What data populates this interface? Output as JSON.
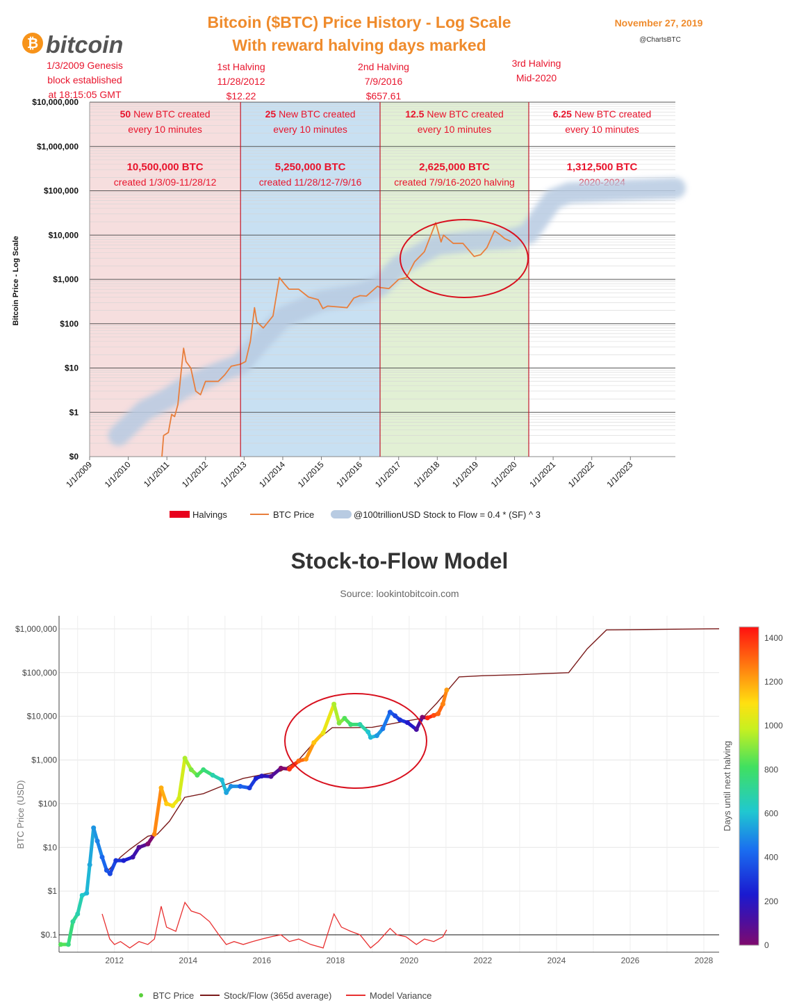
{
  "top": {
    "logo_text": "bitcoin",
    "logo_symbol": "₿",
    "title_line1": "Bitcoin ($BTC) Price History - Log Scale",
    "title_line2": "With reward halving days marked",
    "date": "November 27, 2019",
    "handle": "@ChartsBTC",
    "events": [
      {
        "lines": [
          "1/3/2009 Genesis",
          "block established",
          "at 18:15:05 GMT"
        ]
      },
      {
        "lines": [
          "1st Halving",
          "11/28/2012",
          "$12.22"
        ]
      },
      {
        "lines": [
          "2nd Halving",
          "7/9/2016",
          "$657.61"
        ]
      },
      {
        "lines": [
          "3rd Halving",
          "Mid-2020"
        ]
      }
    ],
    "eras": [
      {
        "reward": "50",
        "reward_text": " New BTC created",
        "every": "every 10 minutes",
        "total": "10,500,000 BTC",
        "period": "created  1/3/09-11/28/12",
        "color": "#f6dede"
      },
      {
        "reward": "25",
        "reward_text": " New BTC created",
        "every": "every 10 minutes",
        "total": "5,250,000 BTC",
        "period": "created 11/28/12-7/9/16",
        "color": "#c8e0f2"
      },
      {
        "reward": "12.5",
        "reward_text": " New BTC created",
        "every": "every 10 minutes",
        "total": "2,625,000 BTC",
        "period": "created 7/9/16-2020 halving",
        "color": "#e2f0d4"
      },
      {
        "reward": "6.25",
        "reward_text": " New BTC created",
        "every": "every 10 minutes",
        "total": "1,312,500 BTC",
        "period": "2020-2024",
        "color": "#ffffff"
      }
    ],
    "legend": [
      {
        "label": "Halvings",
        "color": "#e8001c"
      },
      {
        "label": "BTC Price",
        "color": "#e87e3c"
      },
      {
        "label": "@100trillionUSD Stock to Flow = 0.4 * (SF) ^ 3",
        "color": "#b8cbe2"
      }
    ]
  },
  "bottom": {
    "title": "Stock-to-Flow Model",
    "source": "Source: lookintobitcoin.com",
    "colorbar_label": "Days until next halving",
    "legend": [
      {
        "label": "BTC Price",
        "color": "#5ad03c"
      },
      {
        "label": "Stock/Flow (365d average)",
        "color": "#7a1a1a"
      },
      {
        "label": "Model Variance",
        "color": "#e83030"
      }
    ]
  },
  "chart_data": [
    {
      "type": "line",
      "title": "Bitcoin ($BTC) Price History - Log Scale",
      "subtitle": "With reward halving days marked",
      "ylabel": "Bitcoin Price - Log Scale",
      "y_scale": "log",
      "ylim": [
        0.1,
        10000000
      ],
      "xlim": [
        "2009-01-01",
        "2024-03-01"
      ],
      "y_ticks": [
        {
          "v": 0.1,
          "label": "$0"
        },
        {
          "v": 1,
          "label": "$1"
        },
        {
          "v": 10,
          "label": "$10"
        },
        {
          "v": 100,
          "label": "$100"
        },
        {
          "v": 1000,
          "label": "$1,000"
        },
        {
          "v": 10000,
          "label": "$10,000"
        },
        {
          "v": 100000,
          "label": "$100,000"
        },
        {
          "v": 1000000,
          "label": "$1,000,000"
        },
        {
          "v": 10000000,
          "label": "$10,000,000"
        }
      ],
      "x_ticks": [
        "1/1/2009",
        "1/1/2010",
        "1/1/2011",
        "1/1/2012",
        "1/1/2013",
        "1/1/2014",
        "1/1/2015",
        "1/1/2016",
        "1/1/2017",
        "1/1/2018",
        "1/1/2019",
        "1/1/2020",
        "1/1/2021",
        "1/1/2022",
        "1/1/2023"
      ],
      "halvings": [
        "2012-11-28",
        "2016-07-09",
        "2020-05-15"
      ],
      "grid": true,
      "legend_position": "bottom",
      "series": [
        {
          "name": "BTC Price",
          "x": [
            "2010-11-15",
            "2010-12-01",
            "2011-01-15",
            "2011-02-15",
            "2011-03-15",
            "2011-04-15",
            "2011-05-15",
            "2011-06-08",
            "2011-07-01",
            "2011-08-15",
            "2011-10-01",
            "2011-11-15",
            "2012-01-01",
            "2012-03-01",
            "2012-05-01",
            "2012-07-01",
            "2012-09-01",
            "2012-11-28",
            "2013-01-15",
            "2013-03-01",
            "2013-04-09",
            "2013-05-01",
            "2013-07-01",
            "2013-10-01",
            "2013-11-30",
            "2014-01-15",
            "2014-03-01",
            "2014-06-01",
            "2014-09-01",
            "2014-12-01",
            "2015-01-15",
            "2015-03-01",
            "2015-06-01",
            "2015-09-01",
            "2015-11-04",
            "2016-01-01",
            "2016-03-01",
            "2016-06-15",
            "2016-07-09",
            "2016-10-01",
            "2017-01-01",
            "2017-03-15",
            "2017-06-01",
            "2017-09-01",
            "2017-12-17",
            "2018-02-06",
            "2018-03-01",
            "2018-06-01",
            "2018-09-01",
            "2018-12-15",
            "2019-02-15",
            "2019-04-15",
            "2019-06-26",
            "2019-08-15",
            "2019-10-01",
            "2019-11-27"
          ],
          "values": [
            0.1,
            0.3,
            0.35,
            0.9,
            0.8,
            1.5,
            8,
            28,
            14,
            10,
            3,
            2.5,
            5,
            5,
            5,
            7,
            11,
            12.22,
            14,
            40,
            230,
            110,
            80,
            150,
            1100,
            800,
            600,
            600,
            400,
            350,
            220,
            250,
            240,
            230,
            380,
            430,
            420,
            700,
            657.61,
            620,
            1000,
            1100,
            2500,
            4200,
            19000,
            7000,
            10000,
            6500,
            6500,
            3300,
            3600,
            5200,
            12500,
            10300,
            8300,
            7200
          ]
        },
        {
          "name": "@100trillionUSD Stock to Flow = 0.4 * (SF) ^ 3",
          "x": [
            "2009-10-01",
            "2010-06-01",
            "2011-01-01",
            "2011-06-01",
            "2012-01-01",
            "2012-06-01",
            "2012-11-28",
            "2013-06-01",
            "2014-01-01",
            "2015-01-01",
            "2016-01-01",
            "2016-07-09",
            "2017-01-01",
            "2017-07-01",
            "2018-01-01",
            "2019-01-01",
            "2020-01-01",
            "2020-05-15",
            "2020-08-01",
            "2021-01-01",
            "2021-06-01",
            "2022-01-01",
            "2023-01-01",
            "2024-03-01"
          ],
          "values": [
            0.3,
            1.1,
            2,
            3.5,
            6,
            8.5,
            12,
            40,
            140,
            330,
            480,
            700,
            2000,
            3500,
            6000,
            7500,
            8500,
            11000,
            20000,
            65000,
            90000,
            95000,
            105000,
            115000
          ]
        }
      ]
    },
    {
      "type": "scatter",
      "title": "Stock-to-Flow Model",
      "subtitle": "Source: lookintobitcoin.com",
      "ylabel": "BTC Price (USD)",
      "y_scale": "log",
      "ylim": [
        0.04,
        2000000
      ],
      "xlim": [
        "2010-07-01",
        "2028-06-01"
      ],
      "y_ticks": [
        {
          "v": 0.1,
          "label": "$0.1"
        },
        {
          "v": 1,
          "label": "$1"
        },
        {
          "v": 10,
          "label": "$10"
        },
        {
          "v": 100,
          "label": "$100"
        },
        {
          "v": 1000,
          "label": "$1,000"
        },
        {
          "v": 10000,
          "label": "$10,000"
        },
        {
          "v": 100000,
          "label": "$100,000"
        },
        {
          "v": 1000000,
          "label": "$1,000,000"
        }
      ],
      "x_ticks": [
        "2012",
        "2014",
        "2016",
        "2018",
        "2020",
        "2022",
        "2024",
        "2026",
        "2028"
      ],
      "colorbar": {
        "label": "Days until next halving",
        "ticks": [
          0,
          200,
          400,
          600,
          800,
          1000,
          1200,
          1400
        ],
        "range": [
          0,
          1450
        ]
      },
      "grid": true,
      "legend_position": "bottom",
      "series": [
        {
          "name": "BTC Price",
          "x": [
            "2010-07-18",
            "2010-10-01",
            "2010-11-15",
            "2011-01-01",
            "2011-02-15",
            "2011-04-01",
            "2011-05-01",
            "2011-06-08",
            "2011-07-15",
            "2011-09-01",
            "2011-10-15",
            "2011-11-18",
            "2012-01-15",
            "2012-04-01",
            "2012-07-01",
            "2012-09-01",
            "2012-11-28",
            "2013-02-01",
            "2013-04-09",
            "2013-06-01",
            "2013-08-01",
            "2013-10-01",
            "2013-11-30",
            "2014-02-01",
            "2014-04-01",
            "2014-06-01",
            "2014-09-01",
            "2014-12-01",
            "2015-01-14",
            "2015-03-01",
            "2015-06-01",
            "2015-09-01",
            "2015-11-04",
            "2016-01-01",
            "2016-04-01",
            "2016-07-09",
            "2016-10-01",
            "2017-01-01",
            "2017-03-15",
            "2017-06-01",
            "2017-09-01",
            "2017-12-17",
            "2018-02-06",
            "2018-04-01",
            "2018-06-01",
            "2018-09-01",
            "2018-11-20",
            "2018-12-15",
            "2019-02-15",
            "2019-04-15",
            "2019-06-26",
            "2019-08-15",
            "2019-10-01",
            "2019-12-15",
            "2020-03-13",
            "2020-05-11",
            "2020-07-01",
            "2020-09-01",
            "2020-10-15",
            "2020-12-01",
            "2021-01-08"
          ],
          "values": [
            0.06,
            0.06,
            0.2,
            0.3,
            0.8,
            0.9,
            4,
            28,
            14,
            6,
            3,
            2.5,
            5,
            5,
            6,
            10,
            12,
            20,
            230,
            100,
            90,
            130,
            1100,
            600,
            450,
            600,
            450,
            350,
            180,
            250,
            250,
            230,
            380,
            430,
            420,
            650,
            620,
            950,
            1050,
            2500,
            4200,
            19000,
            7000,
            9000,
            6500,
            6500,
            4400,
            3300,
            3600,
            5200,
            12500,
            10300,
            8300,
            7200,
            5000,
            9500,
            9200,
            10500,
            11500,
            19000,
            40000
          ],
          "days_until_next_halving": [
            835,
            760,
            715,
            668,
            622,
            577,
            547,
            511,
            474,
            419,
            376,
            343,
            296,
            241,
            150,
            88,
            0,
            1250,
            1187,
            1134,
            1073,
            1012,
            954,
            888,
            827,
            766,
            674,
            583,
            540,
            496,
            404,
            312,
            247,
            190,
            99,
            0,
            1390,
            1299,
            1225,
            1150,
            1058,
            951,
            900,
            835,
            774,
            682,
            603,
            578,
            514,
            454,
            383,
            333,
            288,
            212,
            124,
            0,
            1410,
            1348,
            1305,
            1260,
            1218
          ]
        },
        {
          "name": "Stock/Flow (365d average)",
          "x": [
            "2011-11-01",
            "2012-03-01",
            "2012-06-01",
            "2012-11-28",
            "2013-03-01",
            "2013-07-01",
            "2013-11-28",
            "2014-06-01",
            "2015-01-01",
            "2015-07-01",
            "2016-01-01",
            "2016-07-09",
            "2017-01-01",
            "2017-06-01",
            "2017-11-30",
            "2018-06-01",
            "2019-01-01",
            "2019-06-01",
            "2020-01-01",
            "2020-05-11",
            "2020-10-01",
            "2021-05-11",
            "2022-01-01",
            "2023-01-01",
            "2024-05-01",
            "2024-11-01",
            "2025-05-11",
            "2026-06-01",
            "2027-06-01",
            "2028-06-01"
          ],
          "values": [
            3,
            6,
            9,
            18,
            20,
            40,
            140,
            170,
            270,
            380,
            460,
            560,
            1000,
            2500,
            5500,
            5500,
            5600,
            6500,
            8000,
            9000,
            20000,
            80000,
            85000,
            90000,
            100000,
            350000,
            950000,
            970000,
            990000,
            1010000
          ]
        },
        {
          "name": "Model Variance",
          "x": [
            "2011-09-01",
            "2011-11-15",
            "2012-01-01",
            "2012-03-01",
            "2012-06-01",
            "2012-09-01",
            "2012-11-28",
            "2013-02-01",
            "2013-04-09",
            "2013-06-01",
            "2013-09-01",
            "2013-11-30",
            "2014-02-01",
            "2014-05-01",
            "2014-08-01",
            "2014-11-01",
            "2015-01-14",
            "2015-04-01",
            "2015-07-01",
            "2015-10-01",
            "2016-01-01",
            "2016-04-01",
            "2016-07-09",
            "2016-10-01",
            "2017-01-01",
            "2017-05-01",
            "2017-09-01",
            "2017-12-17",
            "2018-03-01",
            "2018-06-01",
            "2018-09-01",
            "2018-12-15",
            "2019-03-01",
            "2019-06-26",
            "2019-09-01",
            "2019-12-01",
            "2020-03-13",
            "2020-06-01",
            "2020-09-01",
            "2020-12-01",
            "2021-01-08"
          ],
          "values": [
            0.3,
            0.08,
            0.06,
            0.07,
            0.05,
            0.07,
            0.06,
            0.08,
            0.45,
            0.15,
            0.12,
            0.55,
            0.35,
            0.3,
            0.2,
            0.1,
            0.06,
            0.07,
            0.06,
            0.07,
            0.08,
            0.09,
            0.1,
            0.07,
            0.08,
            0.06,
            0.05,
            0.3,
            0.15,
            0.12,
            0.1,
            0.05,
            0.07,
            0.14,
            0.1,
            0.09,
            0.06,
            0.08,
            0.07,
            0.09,
            0.13
          ]
        }
      ]
    }
  ]
}
